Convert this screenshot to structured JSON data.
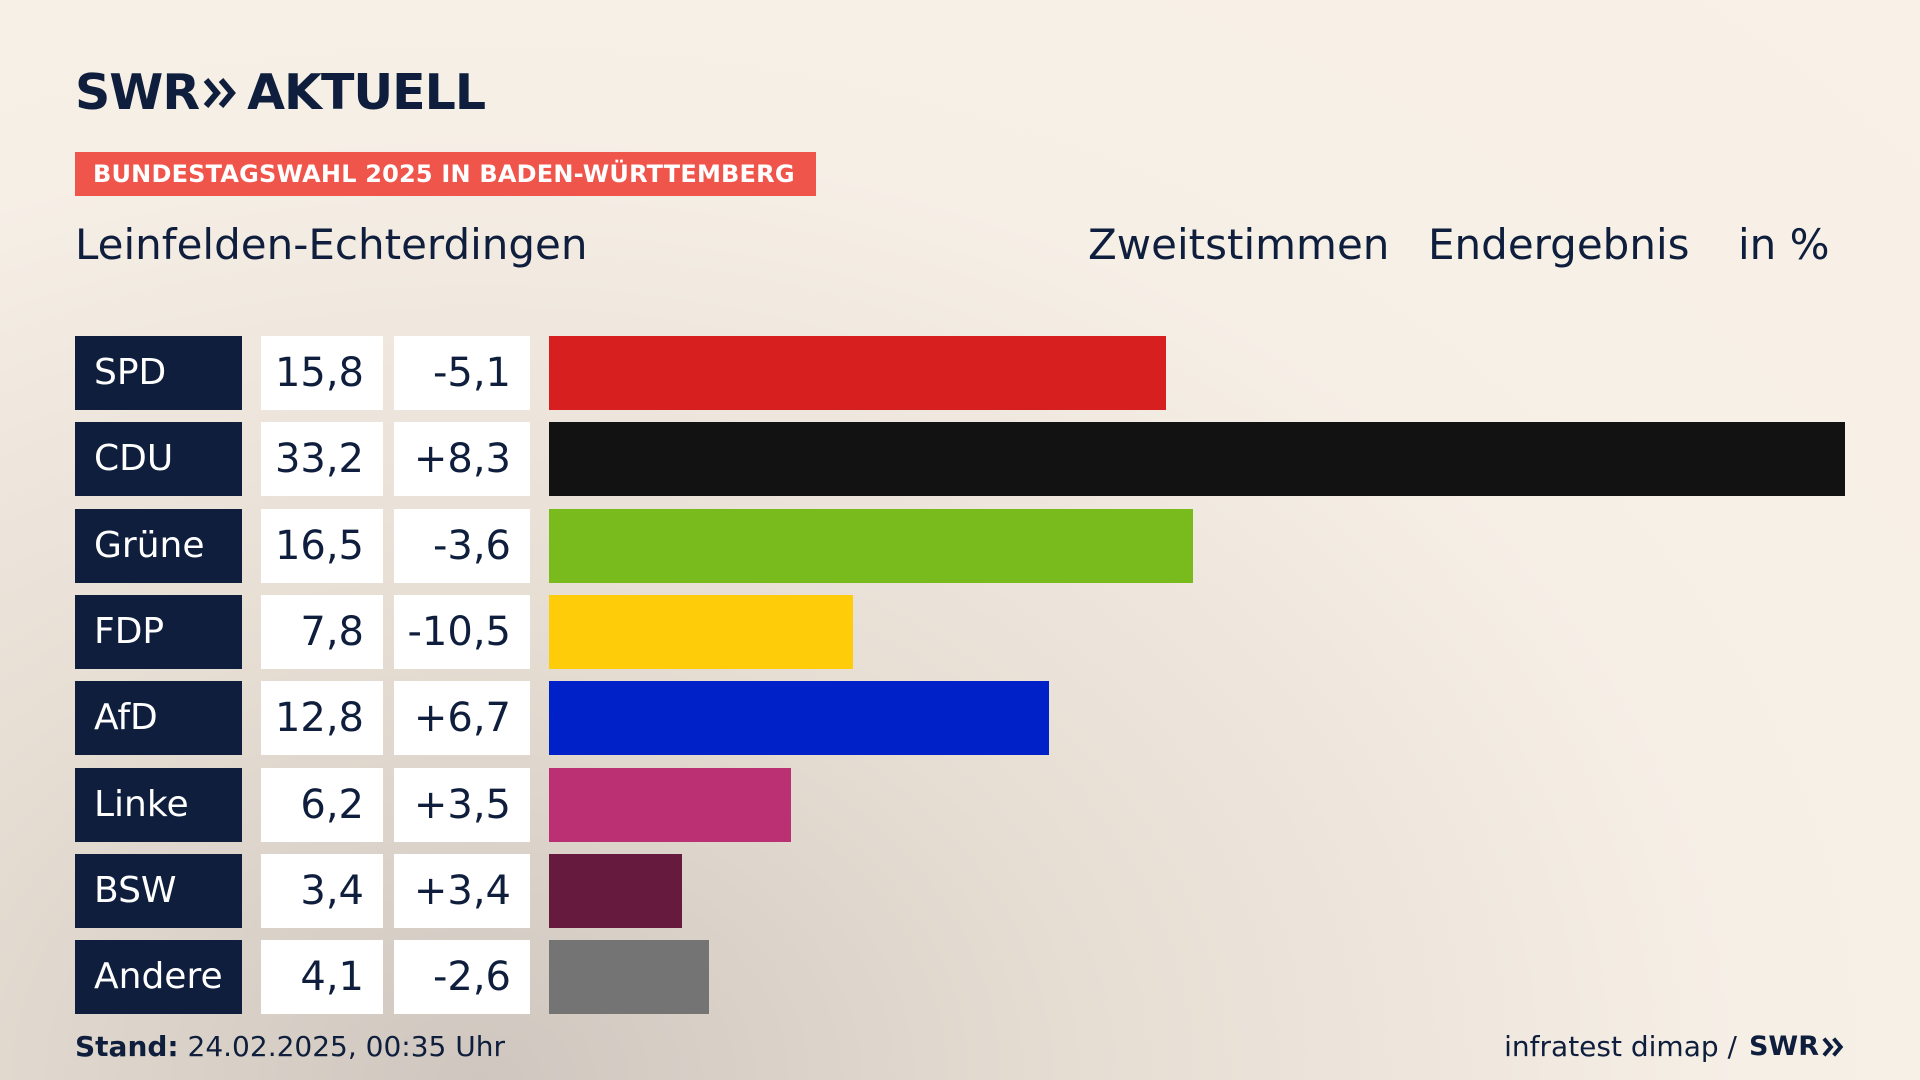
{
  "brand": {
    "name": "SWR",
    "suffix": "AKTUELL"
  },
  "tag": "BUNDESTAGSWAHL 2025 IN BADEN-WÜRTTEMBERG",
  "district": "Leinfelden-Echterdingen",
  "header": {
    "vote": "Zweitstimmen",
    "status": "Endergebnis",
    "unit": "in %"
  },
  "colors": {
    "navy": "#0e1e3c",
    "tag": "#f0554b"
  },
  "chart_data": {
    "type": "bar",
    "categories": [
      "SPD",
      "CDU",
      "Grüne",
      "FDP",
      "AfD",
      "Linke",
      "BSW",
      "Andere"
    ],
    "values": [
      15.8,
      33.2,
      16.5,
      7.8,
      12.8,
      6.2,
      3.4,
      4.1
    ],
    "labels": [
      "15,8",
      "33,2",
      "16,5",
      "7,8",
      "12,8",
      "6,2",
      "3,4",
      "4,1"
    ],
    "changes": [
      "-5,1",
      "+8,3",
      "-3,6",
      "-10,5",
      "+6,7",
      "+3,5",
      "+3,4",
      "-2,6"
    ],
    "colors": [
      "#d71f20",
      "#121212",
      "#79bb1c",
      "#ffcc0a",
      "#0020c8",
      "#bb3073",
      "#661a3d",
      "#747474"
    ],
    "xlim": [
      0,
      33.2
    ]
  },
  "footer": {
    "stand_label": "Stand:",
    "stand_value": "24.02.2025, 00:35 Uhr",
    "source": "infratest dimap /",
    "source_brand": "SWR"
  }
}
